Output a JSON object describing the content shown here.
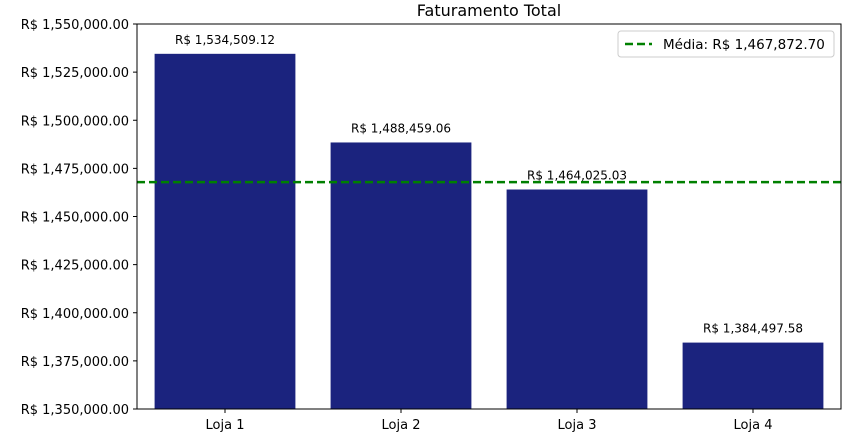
{
  "chart_data": {
    "type": "bar",
    "title": "Faturamento Total",
    "xlabel": "",
    "ylabel": "",
    "categories": [
      "Loja 1",
      "Loja 2",
      "Loja 3",
      "Loja 4"
    ],
    "values": [
      1534509.12,
      1488459.06,
      1464025.03,
      1384497.58
    ],
    "data_labels": [
      "R$ 1,534,509.12",
      "R$ 1,488,459.06",
      "R$ 1,464,025.03",
      "R$ 1,384,497.58"
    ],
    "ylim": [
      1350000,
      1550000
    ],
    "yticks": [
      1350000,
      1375000,
      1400000,
      1425000,
      1450000,
      1475000,
      1500000,
      1525000,
      1550000
    ],
    "ytick_labels": [
      "R$ 1,350,000.00",
      "R$ 1,375,000.00",
      "R$ 1,400,000.00",
      "R$ 1,425,000.00",
      "R$ 1,450,000.00",
      "R$ 1,475,000.00",
      "R$ 1,500,000.00",
      "R$ 1,525,000.00",
      "R$ 1,550,000.00"
    ],
    "mean_line": {
      "value": 1467872.7,
      "label": "Média: R$ 1,467,872.70",
      "color": "#008000",
      "style": "dashed"
    },
    "legend_position": "top-right",
    "grid": false,
    "bar_color": "#1b237e"
  }
}
